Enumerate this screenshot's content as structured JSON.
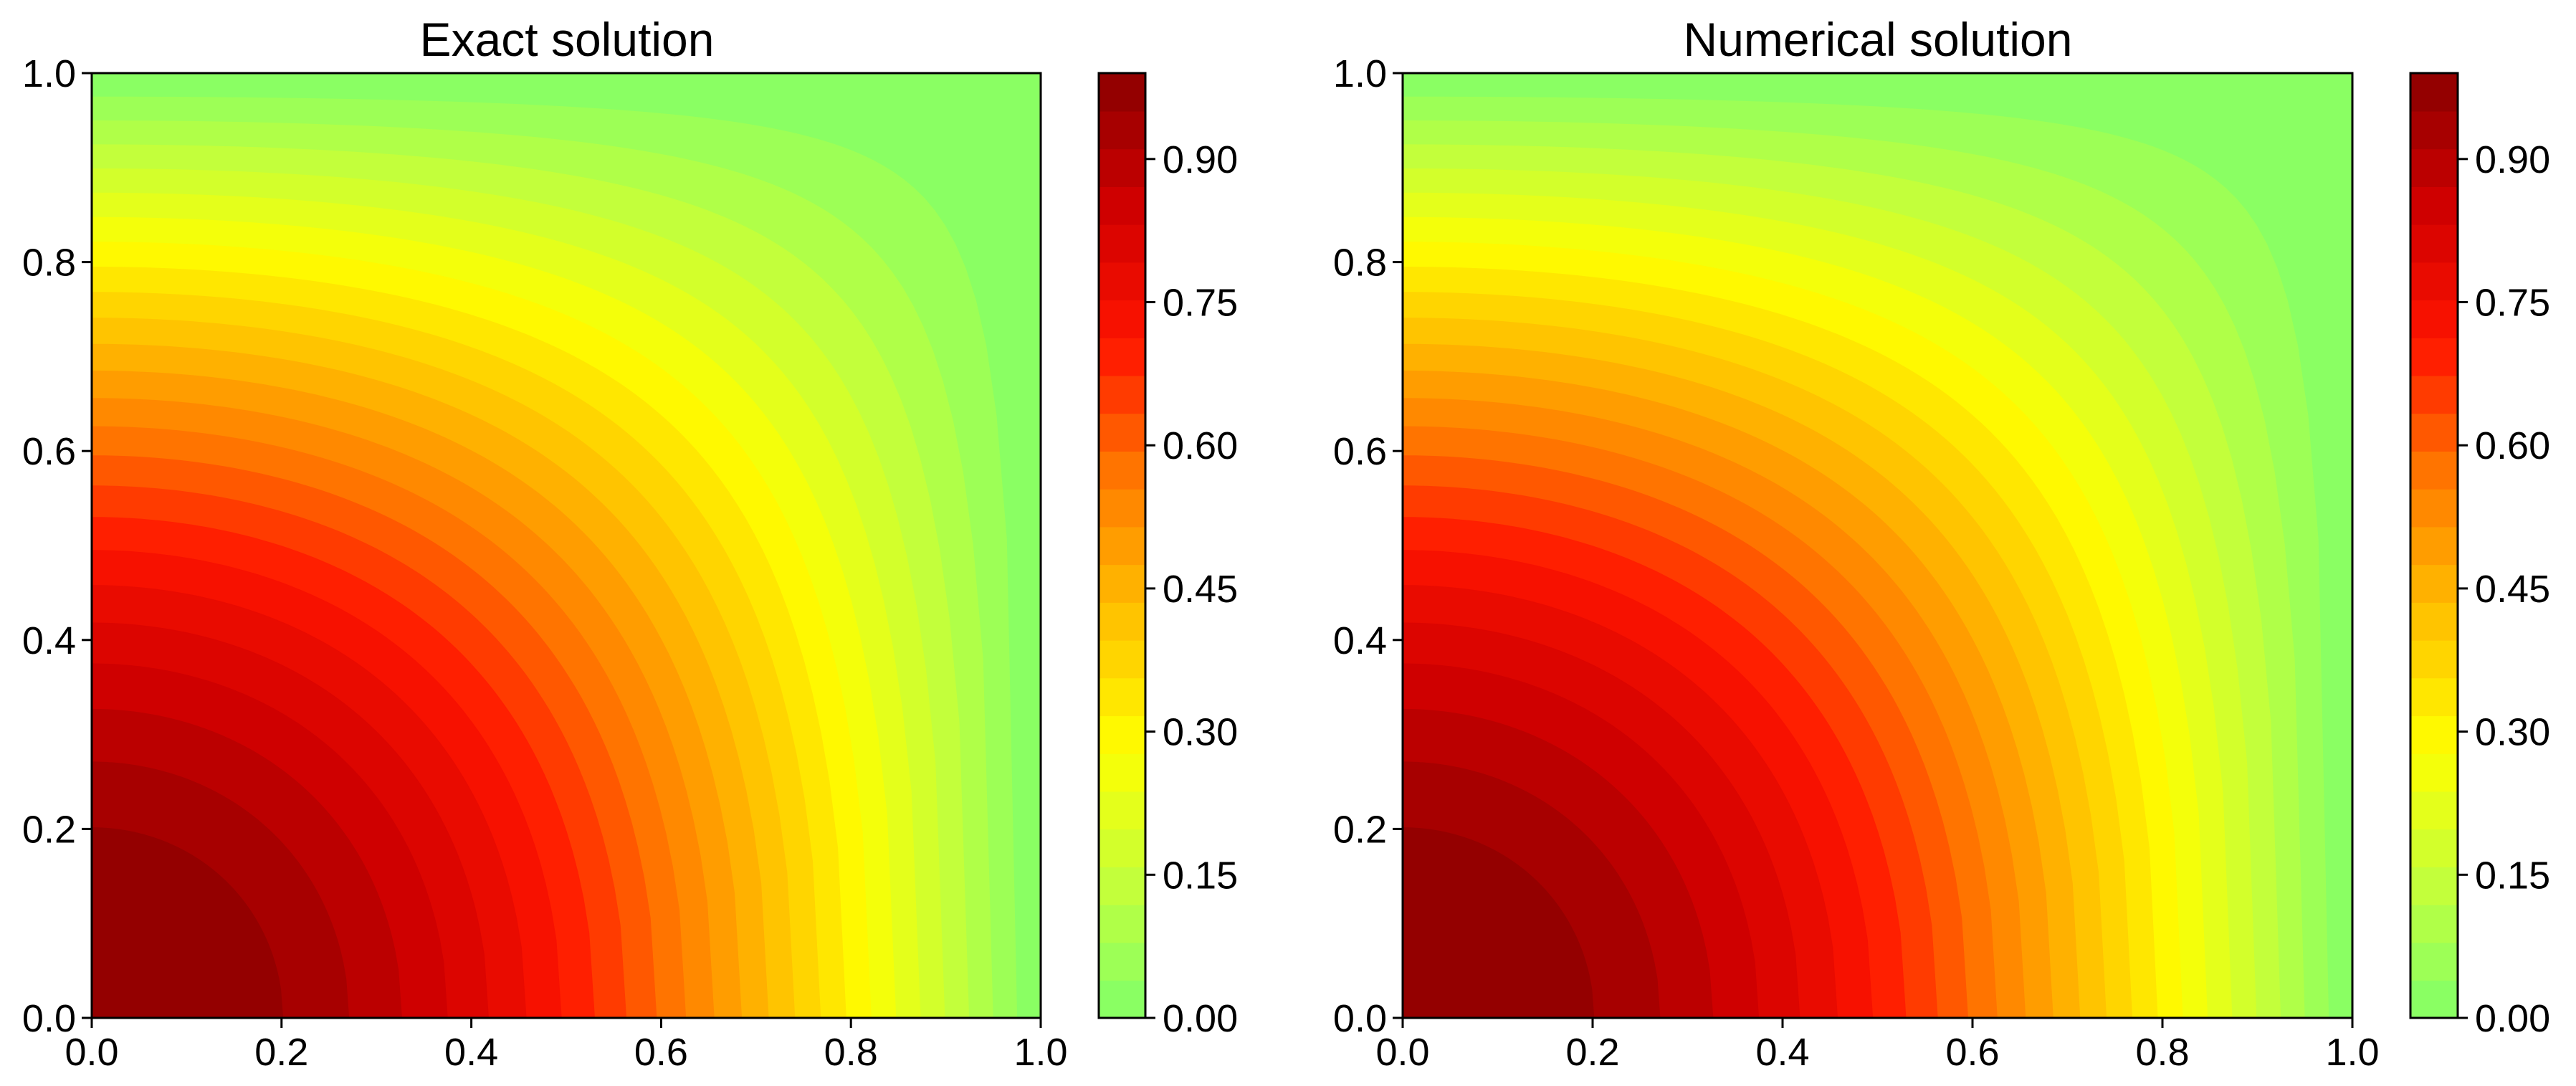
{
  "chart_data": [
    {
      "type": "heatmap",
      "title": "Exact solution",
      "xlabel": "",
      "ylabel": "",
      "xlim": [
        0.0,
        1.0
      ],
      "ylim": [
        0.0,
        1.0
      ],
      "x_ticks": [
        "0.0",
        "0.2",
        "0.4",
        "0.6",
        "0.8",
        "1.0"
      ],
      "y_ticks": [
        "0.0",
        "0.2",
        "0.4",
        "0.6",
        "0.8",
        "1.0"
      ],
      "field": "cos(pi*x/2)*cos(pi*y/2)",
      "levels": 25,
      "colormap": "green-yellow-red",
      "colorbar": {
        "vmin": 0.0,
        "vmax": 0.99,
        "ticks": [
          "0.00",
          "0.15",
          "0.30",
          "0.45",
          "0.60",
          "0.75",
          "0.90"
        ]
      }
    },
    {
      "type": "heatmap",
      "title": "Numerical solution",
      "xlabel": "",
      "ylabel": "",
      "xlim": [
        0.0,
        1.0
      ],
      "ylim": [
        0.0,
        1.0
      ],
      "x_ticks": [
        "0.0",
        "0.2",
        "0.4",
        "0.6",
        "0.8",
        "1.0"
      ],
      "y_ticks": [
        "0.0",
        "0.2",
        "0.4",
        "0.6",
        "0.8",
        "1.0"
      ],
      "field": "cos(pi*x/2)*cos(pi*y/2)",
      "levels": 25,
      "colormap": "green-yellow-red",
      "colorbar": {
        "vmin": 0.0,
        "vmax": 0.99,
        "ticks": [
          "0.00",
          "0.15",
          "0.30",
          "0.45",
          "0.60",
          "0.75",
          "0.90"
        ]
      }
    }
  ],
  "colormap_stops": [
    "#80ff6a",
    "#c4ff3a",
    "#ffff00",
    "#ffc000",
    "#ff7a00",
    "#ff1500",
    "#d00000",
    "#8a0000"
  ]
}
